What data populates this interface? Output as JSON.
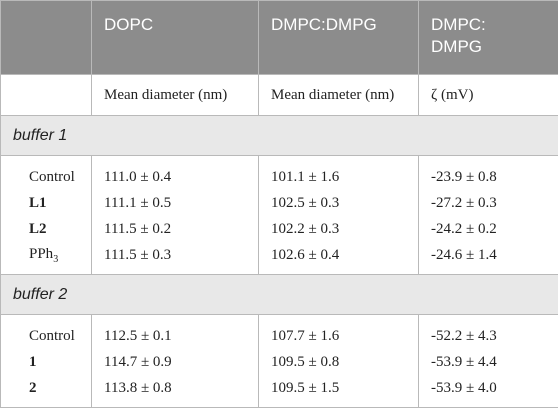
{
  "table": {
    "header": [
      "",
      "DOPC",
      "DMPC:DMPG",
      "DMPC:\nDMPG"
    ],
    "header_lines": {
      "col3_line1": "DMPC:",
      "col3_line2": "DMPG"
    },
    "subheader": [
      "",
      "Mean diameter (nm)",
      "Mean diameter (nm)",
      "ζ (mV)"
    ],
    "sections": [
      {
        "title": "buffer 1",
        "rows": [
          {
            "name": "Control",
            "bold": false,
            "dopc": "111.0 ± 0.4",
            "dmpc_dmpg": "101.1 ± 1.6",
            "zeta": "-23.9 ± 0.8"
          },
          {
            "name": "L1",
            "bold": true,
            "dopc": "111.1 ± 0.5",
            "dmpc_dmpg": "102.5 ± 0.3",
            "zeta": "-27.2 ± 0.3"
          },
          {
            "name": "L2",
            "bold": true,
            "dopc": "111.5 ± 0.2",
            "dmpc_dmpg": "102.2 ± 0.3",
            "zeta": "-24.2 ± 0.2"
          },
          {
            "name": "PPh",
            "name_sub": "3",
            "bold": false,
            "dopc": "111.5 ± 0.3",
            "dmpc_dmpg": "102.6 ± 0.4",
            "zeta": "-24.6 ± 1.4"
          }
        ]
      },
      {
        "title": "buffer 2",
        "rows": [
          {
            "name": "Control",
            "bold": false,
            "dopc": "112.5 ± 0.1",
            "dmpc_dmpg": "107.7 ± 1.6",
            "zeta": "-52.2 ± 4.3"
          },
          {
            "name": "1",
            "bold": true,
            "dopc": "114.7 ± 0.9",
            "dmpc_dmpg": "109.5 ± 0.8",
            "zeta": "-53.9 ± 4.4"
          },
          {
            "name": "2",
            "bold": true,
            "dopc": "113.8 ± 0.8",
            "dmpc_dmpg": "109.5 ± 1.5",
            "zeta": "-53.9 ± 4.0"
          }
        ]
      }
    ]
  }
}
